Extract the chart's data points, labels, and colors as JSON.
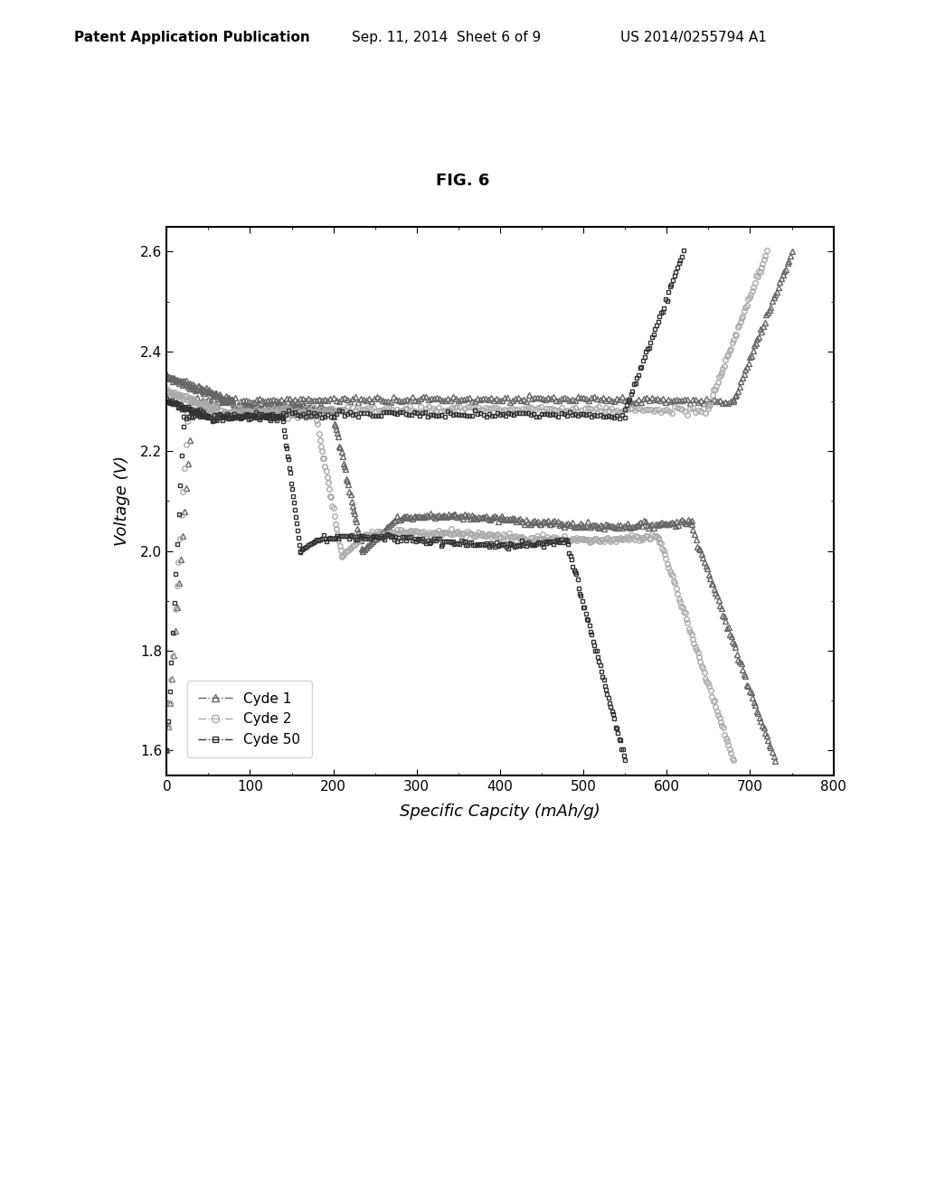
{
  "title": "FIG. 6",
  "xlabel": "Specific Capcity (mAh/g)",
  "ylabel": "Voltage (V)",
  "xlim": [
    0,
    800
  ],
  "ylim": [
    1.55,
    2.65
  ],
  "xticks": [
    0,
    100,
    200,
    300,
    400,
    500,
    600,
    700,
    800
  ],
  "yticks": [
    1.6,
    1.8,
    2.0,
    2.2,
    2.4,
    2.6
  ],
  "legend_labels": [
    "Cyde 1",
    "Cyde 2",
    "Cyde 50"
  ],
  "background_color": "#ffffff",
  "line_color": "#000000",
  "header_text": "Patent Application Publication",
  "header_date": "Sep. 11, 2014  Sheet 6 of 9",
  "header_patent": "US 2014/0255794 A1"
}
